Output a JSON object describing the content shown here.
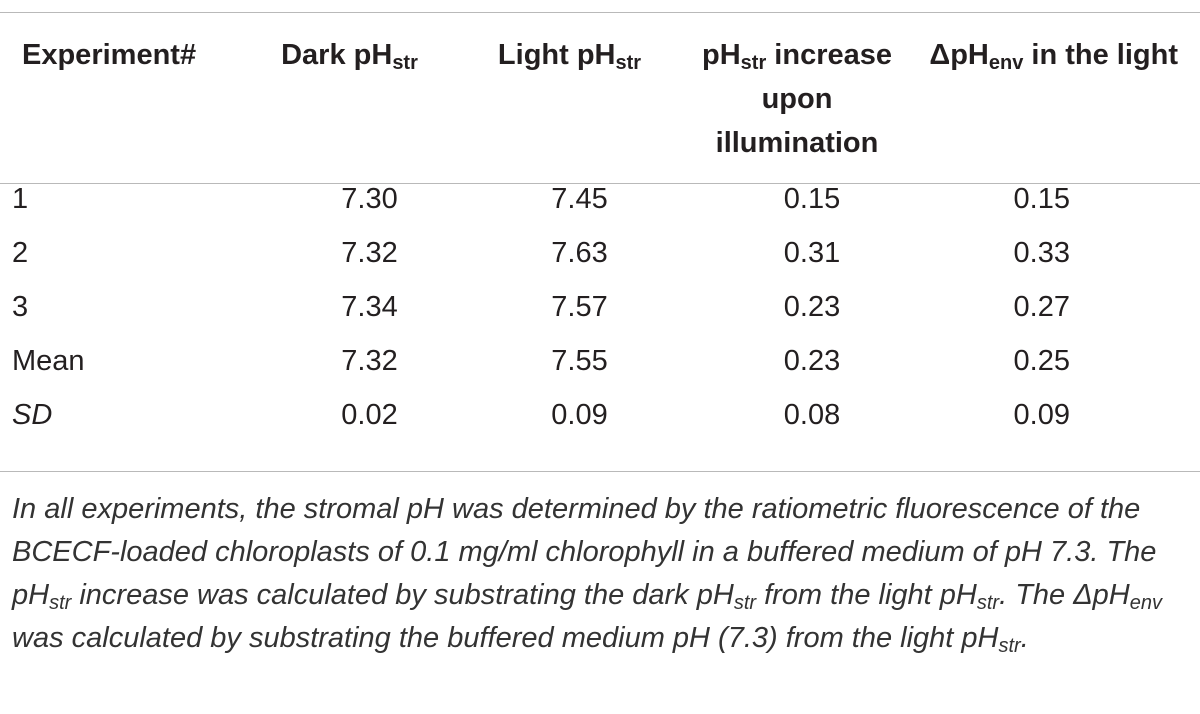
{
  "table": {
    "headers": [
      {
        "pre": "Experiment#",
        "sub": "",
        "post": ""
      },
      {
        "pre": "Dark pH",
        "sub": "str",
        "post": ""
      },
      {
        "pre": "Light pH",
        "sub": "str",
        "post": ""
      },
      {
        "pre": "pH",
        "sub": "str",
        "post": " increase upon illumination"
      },
      {
        "pre": "ΔpH",
        "sub": "env",
        "post": " in the light"
      }
    ],
    "rows": [
      [
        "1",
        "7.30",
        "7.45",
        "0.15",
        "0.15"
      ],
      [
        "2",
        "7.32",
        "7.63",
        "0.31",
        "0.33"
      ],
      [
        "3",
        "7.34",
        "7.57",
        "0.23",
        "0.27"
      ],
      [
        "Mean",
        "7.32",
        "7.55",
        "0.23",
        "0.25"
      ],
      [
        "SD",
        "0.02",
        "0.09",
        "0.08",
        "0.09"
      ]
    ]
  },
  "note": {
    "p1": "In all experiments, the stromal pH was determined by the ratiometric fluorescence of the BCECF-loaded chloroplasts of 0.1 mg/ml chlorophyll in a buffered medium of pH 7.3. The pH",
    "s1": "str",
    "p2": " increase was calculated by substrating the dark pH",
    "s2": "str",
    "p3": " from the light pH",
    "s3": "str",
    "p4": ". The ΔpH",
    "s4": "env",
    "p5": " was calculated by substrating the buffered medium pH (7.3) from the light pH",
    "s5": "str",
    "p6": "."
  }
}
